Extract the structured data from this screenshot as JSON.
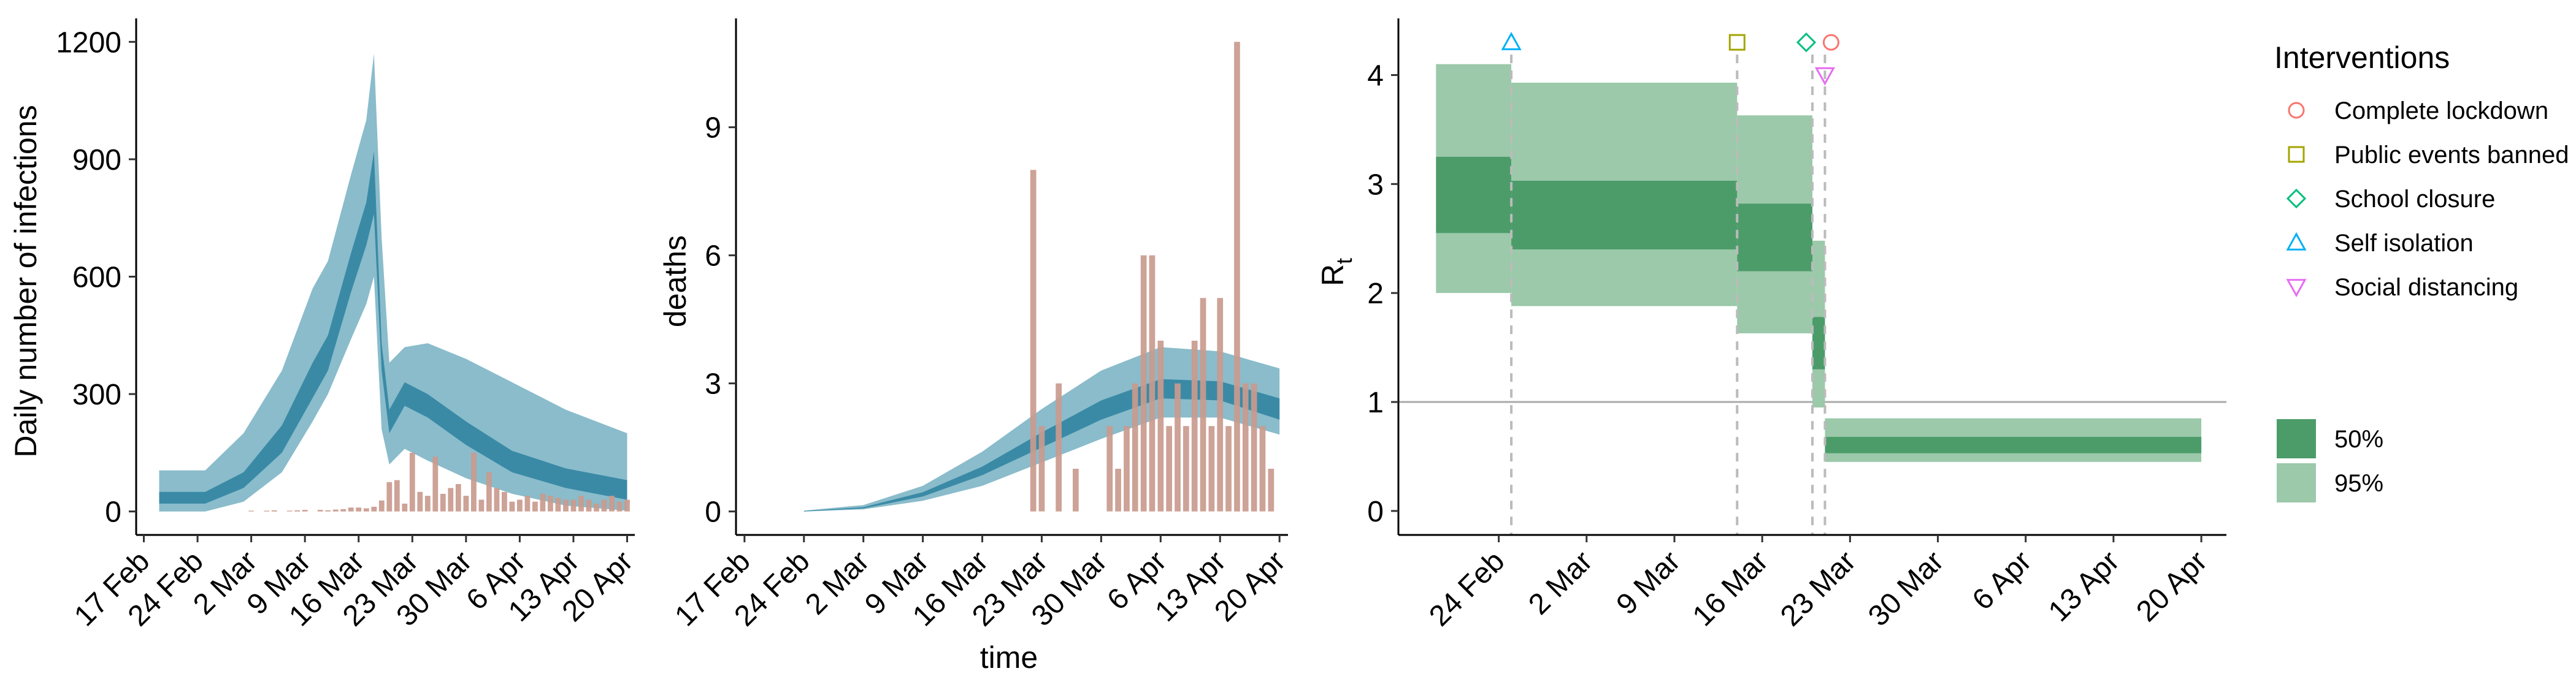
{
  "colors": {
    "infection_95": "#8abccb",
    "infection_50": "#3a8aa6",
    "infection_dark": "#2c7a96",
    "bars": "#c99a8e",
    "rt_95": "#9bc9aa",
    "rt_50": "#4c9c6a",
    "intervention_line": "#bbbbbb",
    "threshold_line": "#aaaaaa",
    "complete_lockdown": "#f8766d",
    "public_events": "#a3a500",
    "school_closure": "#00bf7d",
    "self_isolation": "#00b0f6",
    "social_distancing": "#e76bf3"
  },
  "chart_data": [
    {
      "type": "area",
      "panel": "infections",
      "title": "",
      "xlabel": "",
      "ylabel": "Daily number of infections",
      "ylim": [
        -60,
        1260
      ],
      "yticks": [
        0,
        300,
        600,
        900,
        1200
      ],
      "yticklabels": [
        "0",
        "300",
        "600",
        "900",
        "1200"
      ],
      "xlim": [
        "2020-02-16",
        "2020-04-21"
      ],
      "xticks": [
        "2020-02-17",
        "2020-02-24",
        "2020-03-02",
        "2020-03-09",
        "2020-03-16",
        "2020-03-23",
        "2020-03-30",
        "2020-04-06",
        "2020-04-13",
        "2020-04-20"
      ],
      "xticklabels": [
        "17 Feb",
        "24 Feb",
        "2 Mar",
        "9 Mar",
        "16 Mar",
        "23 Mar",
        "30 Mar",
        "6 Apr",
        "13 Apr",
        "20 Apr"
      ],
      "band_95": {
        "x": [
          "2020-02-19",
          "2020-02-25",
          "2020-03-01",
          "2020-03-06",
          "2020-03-10",
          "2020-03-12",
          "2020-03-15",
          "2020-03-17",
          "2020-03-18",
          "2020-03-19",
          "2020-03-20",
          "2020-03-22",
          "2020-03-25",
          "2020-03-30",
          "2020-04-05",
          "2020-04-12",
          "2020-04-20"
        ],
        "upper": [
          105,
          105,
          200,
          360,
          570,
          640,
          860,
          1000,
          1170,
          700,
          380,
          420,
          430,
          390,
          330,
          260,
          200
        ],
        "lower": [
          0,
          0,
          25,
          100,
          230,
          300,
          440,
          530,
          600,
          210,
          120,
          160,
          130,
          85,
          45,
          15,
          2
        ]
      },
      "band_50": {
        "x": [
          "2020-02-19",
          "2020-02-25",
          "2020-03-01",
          "2020-03-06",
          "2020-03-10",
          "2020-03-12",
          "2020-03-15",
          "2020-03-17",
          "2020-03-18",
          "2020-03-19",
          "2020-03-20",
          "2020-03-22",
          "2020-03-25",
          "2020-03-30",
          "2020-04-05",
          "2020-04-12",
          "2020-04-20"
        ],
        "upper": [
          50,
          50,
          100,
          220,
          380,
          450,
          660,
          790,
          920,
          430,
          260,
          330,
          300,
          230,
          155,
          110,
          80
        ],
        "lower": [
          20,
          20,
          60,
          150,
          290,
          360,
          560,
          680,
          760,
          360,
          200,
          270,
          240,
          170,
          100,
          60,
          30
        ]
      },
      "bars": {
        "x": [
          "2020-03-02",
          "2020-03-04",
          "2020-03-05",
          "2020-03-07",
          "2020-03-08",
          "2020-03-09",
          "2020-03-11",
          "2020-03-12",
          "2020-03-13",
          "2020-03-14",
          "2020-03-15",
          "2020-03-16",
          "2020-03-17",
          "2020-03-18",
          "2020-03-19",
          "2020-03-20",
          "2020-03-21",
          "2020-03-22",
          "2020-03-23",
          "2020-03-24",
          "2020-03-25",
          "2020-03-26",
          "2020-03-27",
          "2020-03-28",
          "2020-03-29",
          "2020-03-30",
          "2020-03-31",
          "2020-04-01",
          "2020-04-02",
          "2020-04-03",
          "2020-04-04",
          "2020-04-05",
          "2020-04-06",
          "2020-04-07",
          "2020-04-08",
          "2020-04-09",
          "2020-04-10",
          "2020-04-11",
          "2020-04-12",
          "2020-04-13",
          "2020-04-14",
          "2020-04-15",
          "2020-04-16",
          "2020-04-17",
          "2020-04-18",
          "2020-04-19",
          "2020-04-20"
        ],
        "values": [
          2,
          2,
          3,
          2,
          3,
          4,
          4,
          3,
          5,
          6,
          10,
          10,
          8,
          12,
          28,
          75,
          80,
          20,
          150,
          50,
          40,
          140,
          45,
          60,
          70,
          40,
          150,
          30,
          100,
          60,
          50,
          25,
          30,
          40,
          25,
          45,
          40,
          35,
          30,
          30,
          40,
          30,
          20,
          30,
          40,
          25,
          30
        ]
      }
    },
    {
      "type": "area",
      "panel": "deaths",
      "title": "",
      "xlabel": "time",
      "ylabel": "deaths",
      "ylim": [
        -0.55,
        11.55
      ],
      "yticks": [
        0,
        3,
        6,
        9
      ],
      "yticklabels": [
        "0",
        "3",
        "6",
        "9"
      ],
      "xlim": [
        "2020-02-16",
        "2020-04-21"
      ],
      "xticks": [
        "2020-02-17",
        "2020-02-24",
        "2020-03-02",
        "2020-03-09",
        "2020-03-16",
        "2020-03-23",
        "2020-03-30",
        "2020-04-06",
        "2020-04-13",
        "2020-04-20"
      ],
      "xticklabels": [
        "17 Feb",
        "24 Feb",
        "2 Mar",
        "9 Mar",
        "16 Mar",
        "23 Mar",
        "30 Mar",
        "6 Apr",
        "13 Apr",
        "20 Apr"
      ],
      "band_95": {
        "x": [
          "2020-02-24",
          "2020-03-02",
          "2020-03-09",
          "2020-03-16",
          "2020-03-23",
          "2020-03-30",
          "2020-04-06",
          "2020-04-13",
          "2020-04-20"
        ],
        "upper": [
          0.02,
          0.15,
          0.6,
          1.4,
          2.4,
          3.3,
          3.85,
          3.75,
          3.35
        ],
        "lower": [
          0.0,
          0.05,
          0.25,
          0.6,
          1.15,
          1.7,
          2.2,
          2.2,
          1.8
        ]
      },
      "band_50": {
        "x": [
          "2020-02-24",
          "2020-03-02",
          "2020-03-09",
          "2020-03-16",
          "2020-03-23",
          "2020-03-30",
          "2020-04-06",
          "2020-04-13",
          "2020-04-20"
        ],
        "upper": [
          0.01,
          0.1,
          0.45,
          1.05,
          1.85,
          2.6,
          3.1,
          3.05,
          2.65
        ],
        "lower": [
          0.0,
          0.07,
          0.35,
          0.85,
          1.5,
          2.15,
          2.65,
          2.6,
          2.15
        ]
      },
      "bars": {
        "x": [
          "2020-03-22",
          "2020-03-23",
          "2020-03-25",
          "2020-03-27",
          "2020-03-31",
          "2020-04-01",
          "2020-04-02",
          "2020-04-03",
          "2020-04-04",
          "2020-04-05",
          "2020-04-06",
          "2020-04-07",
          "2020-04-08",
          "2020-04-09",
          "2020-04-10",
          "2020-04-11",
          "2020-04-12",
          "2020-04-13",
          "2020-04-14",
          "2020-04-15",
          "2020-04-16",
          "2020-04-17",
          "2020-04-18",
          "2020-04-19"
        ],
        "values": [
          8,
          2,
          3,
          1,
          2,
          1,
          2,
          3,
          6,
          6,
          4,
          2,
          3,
          2,
          4,
          5,
          2,
          5,
          2,
          11,
          3,
          3,
          2,
          1
        ]
      }
    },
    {
      "type": "area",
      "panel": "Rt",
      "title": "",
      "xlabel": "",
      "ylabel": "R",
      "ylabel_subscript": "t",
      "ylim": [
        -0.22,
        4.52
      ],
      "yticks": [
        0,
        1,
        2,
        3,
        4
      ],
      "yticklabels": [
        "0",
        "1",
        "2",
        "3",
        "4"
      ],
      "xlim": [
        "2020-02-16",
        "2020-04-22"
      ],
      "xticks": [
        "2020-02-24",
        "2020-03-02",
        "2020-03-09",
        "2020-03-16",
        "2020-03-23",
        "2020-03-30",
        "2020-04-06",
        "2020-04-13",
        "2020-04-20"
      ],
      "xticklabels": [
        "24 Feb",
        "2 Mar",
        "9 Mar",
        "16 Mar",
        "23 Mar",
        "30 Mar",
        "6 Apr",
        "13 Apr",
        "20 Apr"
      ],
      "threshold": 1,
      "segments": [
        {
          "start": "2020-02-19",
          "end": "2020-02-25",
          "lo95": 2.0,
          "hi95": 4.1,
          "lo50": 2.55,
          "hi50": 3.25
        },
        {
          "start": "2020-02-25",
          "end": "2020-03-14",
          "lo95": 1.88,
          "hi95": 3.93,
          "lo50": 2.4,
          "hi50": 3.03
        },
        {
          "start": "2020-03-14",
          "end": "2020-03-20",
          "lo95": 1.63,
          "hi95": 3.63,
          "lo50": 2.2,
          "hi50": 2.82
        },
        {
          "start": "2020-03-20",
          "end": "2020-03-21",
          "lo95": 0.95,
          "hi95": 2.48,
          "lo50": 1.3,
          "hi50": 1.78
        },
        {
          "start": "2020-03-21",
          "end": "2020-04-20",
          "lo95": 0.45,
          "hi95": 0.85,
          "lo50": 0.53,
          "hi50": 0.68
        }
      ],
      "interventions": [
        {
          "name": "Self isolation",
          "date": "2020-02-25",
          "marker": "triangle-up",
          "marker_y": 4.3
        },
        {
          "name": "Public events banned",
          "date": "2020-03-14",
          "marker": "square",
          "marker_y": 4.3
        },
        {
          "name": "School closure",
          "date": "2020-03-20",
          "marker": "diamond",
          "marker_y": 4.3
        },
        {
          "name": "Complete lockdown",
          "date": "2020-03-21",
          "marker": "circle",
          "marker_y": 4.3
        },
        {
          "name": "Social distancing",
          "date": "2020-03-21",
          "marker": "triangle-down",
          "marker_y": 4.0
        }
      ]
    }
  ],
  "legend": {
    "interventions_title": "Interventions",
    "interventions": [
      {
        "label": "Complete lockdown",
        "marker": "circle",
        "color_key": "complete_lockdown"
      },
      {
        "label": "Public events banned",
        "marker": "square",
        "color_key": "public_events"
      },
      {
        "label": "School closure",
        "marker": "diamond",
        "color_key": "school_closure"
      },
      {
        "label": "Self isolation",
        "marker": "triangle-up",
        "color_key": "self_isolation"
      },
      {
        "label": "Social distancing",
        "marker": "triangle-down",
        "color_key": "social_distancing"
      }
    ],
    "ci": [
      {
        "label": "50%",
        "color_key": "rt_50"
      },
      {
        "label": "95%",
        "color_key": "rt_95"
      }
    ]
  }
}
